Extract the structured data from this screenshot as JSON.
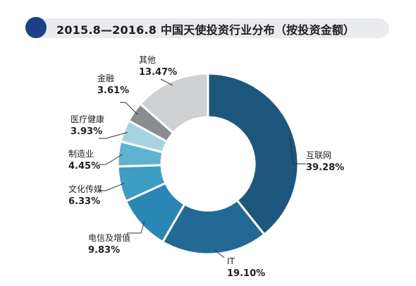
{
  "chart_data": {
    "type": "pie",
    "title": "2015.8—2016.8 中国天使投资行业分布（按投资金额）",
    "slices": [
      {
        "name": "互联网",
        "label": "39.28%",
        "value": 39.28,
        "color": "#1e577d"
      },
      {
        "name": "IT",
        "label": "19.10%",
        "value": 19.1,
        "color": "#226a94"
      },
      {
        "name": "电信及增值",
        "label": "9.83%",
        "value": 9.83,
        "color": "#2a87b5"
      },
      {
        "name": "文化传媒",
        "label": "6.33%",
        "value": 6.33,
        "color": "#3d9dc3"
      },
      {
        "name": "制造业",
        "label": "4.45%",
        "value": 4.45,
        "color": "#5fb3cf"
      },
      {
        "name": "医疗健康",
        "label": "3.93%",
        "value": 3.93,
        "color": "#a7d3e1"
      },
      {
        "name": "金融",
        "label": "3.61%",
        "value": 3.61,
        "color": "#8a8d90"
      },
      {
        "name": "其他",
        "label": "13.47%",
        "value": 13.47,
        "color": "#cfd1d3"
      }
    ],
    "start": "top",
    "direction": "clockwise"
  }
}
